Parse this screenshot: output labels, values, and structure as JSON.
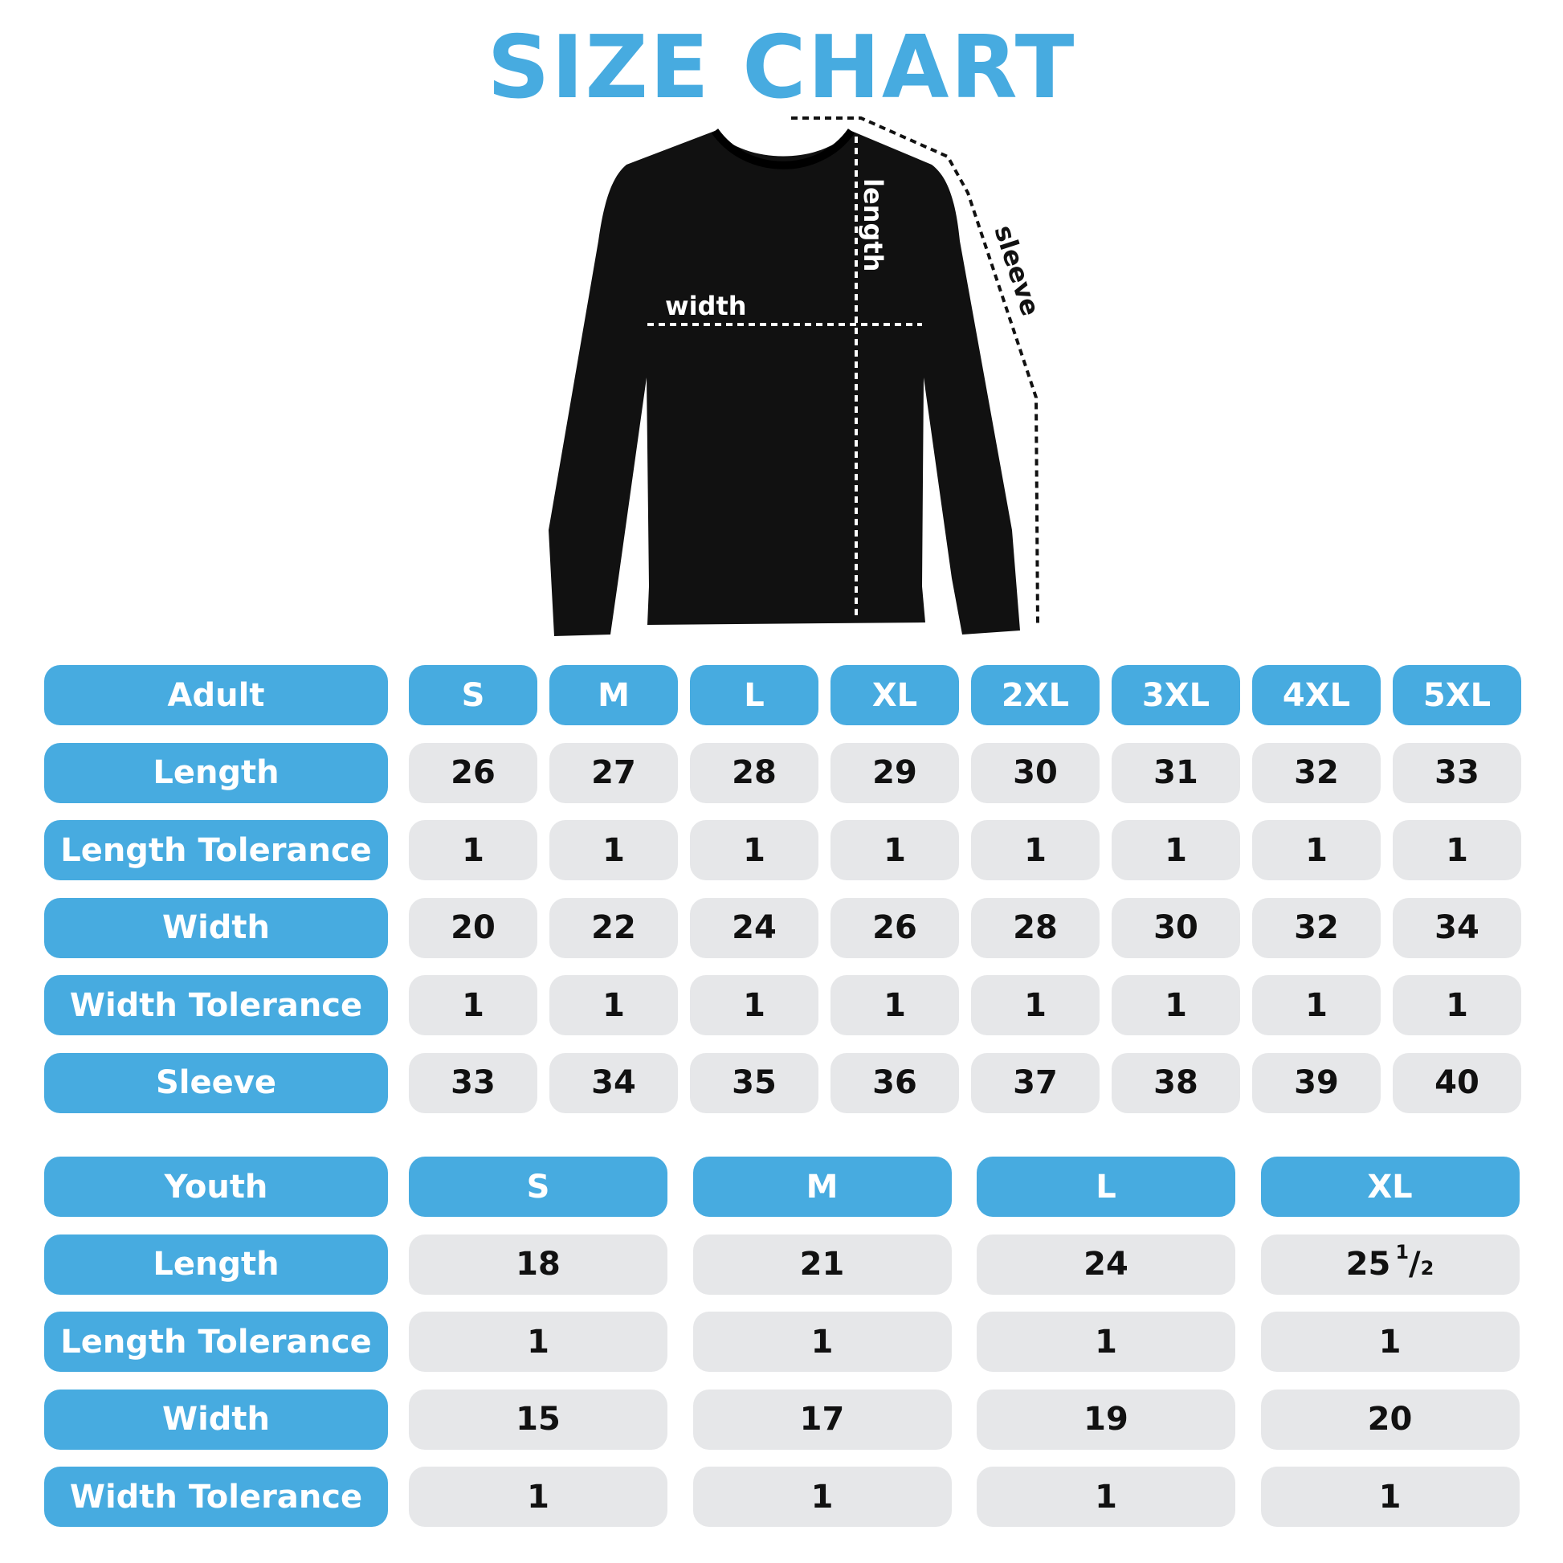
{
  "title": "SIZE CHART",
  "colors": {
    "accent": "#47ABE0",
    "cell_bg": "#E6E7E9",
    "garment": "#111111"
  },
  "diagram": {
    "width_label": "width",
    "length_label": "length",
    "sleeve_label": "sleeve"
  },
  "adult": {
    "header": "Adult",
    "sizes": [
      "S",
      "M",
      "L",
      "XL",
      "2XL",
      "3XL",
      "4XL",
      "5XL"
    ],
    "rows": [
      {
        "label": "Length",
        "values": [
          "26",
          "27",
          "28",
          "29",
          "30",
          "31",
          "32",
          "33"
        ]
      },
      {
        "label": "Length Tolerance",
        "values": [
          "1",
          "1",
          "1",
          "1",
          "1",
          "1",
          "1",
          "1"
        ]
      },
      {
        "label": "Width",
        "values": [
          "20",
          "22",
          "24",
          "26",
          "28",
          "30",
          "32",
          "34"
        ]
      },
      {
        "label": "Width Tolerance",
        "values": [
          "1",
          "1",
          "1",
          "1",
          "1",
          "1",
          "1",
          "1"
        ]
      },
      {
        "label": "Sleeve",
        "values": [
          "33",
          "34",
          "35",
          "36",
          "37",
          "38",
          "39",
          "40"
        ]
      }
    ]
  },
  "youth": {
    "header": "Youth",
    "sizes": [
      "S",
      "M",
      "L",
      "XL"
    ],
    "rows": [
      {
        "label": "Length",
        "values": [
          "18",
          "21",
          "24",
          "25 1/2"
        ]
      },
      {
        "label": "Length Tolerance",
        "values": [
          "1",
          "1",
          "1",
          "1"
        ]
      },
      {
        "label": "Width",
        "values": [
          "15",
          "17",
          "19",
          "20"
        ]
      },
      {
        "label": "Width Tolerance",
        "values": [
          "1",
          "1",
          "1",
          "1"
        ]
      }
    ]
  }
}
